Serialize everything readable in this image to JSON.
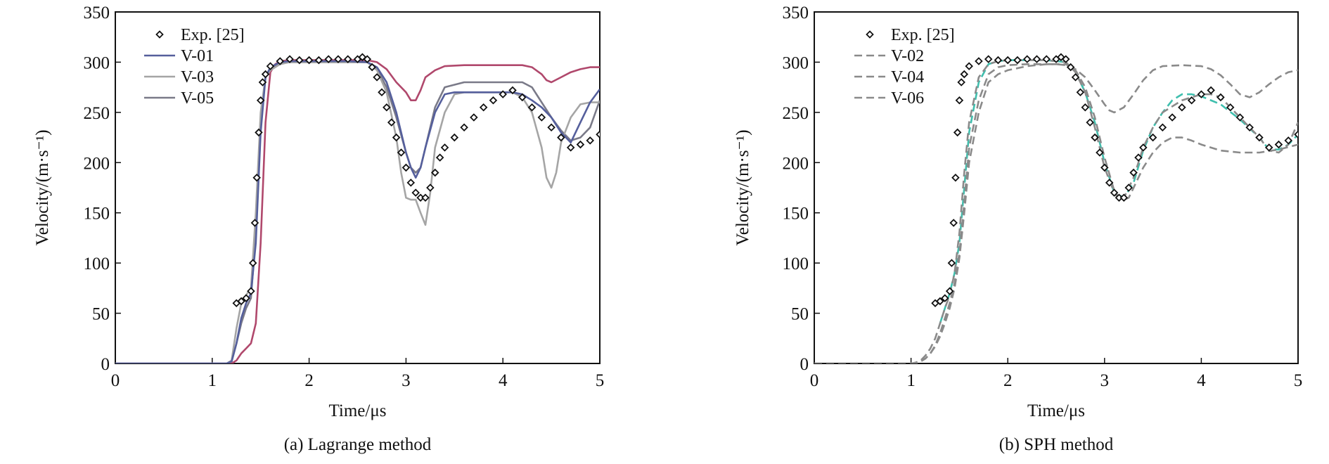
{
  "chart_data": [
    {
      "type": "line",
      "caption": "(a) Lagrange method",
      "xlabel": "Time/μs",
      "ylabel": "Velocity/(m·s⁻¹)",
      "xlim": [
        0,
        5
      ],
      "ylim": [
        0,
        350
      ],
      "xticks": [
        "0",
        "1",
        "2",
        "3",
        "4",
        "5"
      ],
      "yticks": [
        "0",
        "50",
        "100",
        "150",
        "200",
        "250",
        "300",
        "350"
      ],
      "legend_position": "top-left",
      "grid": false,
      "series": [
        {
          "name": "Exp. [25]",
          "style": "marker",
          "color": "#111111",
          "x": [
            1.25,
            1.3,
            1.35,
            1.4,
            1.42,
            1.44,
            1.46,
            1.48,
            1.5,
            1.52,
            1.55,
            1.6,
            1.7,
            1.8,
            1.9,
            2.0,
            2.1,
            2.2,
            2.3,
            2.4,
            2.5,
            2.55,
            2.6,
            2.65,
            2.7,
            2.75,
            2.8,
            2.85,
            2.9,
            2.95,
            3.0,
            3.05,
            3.1,
            3.15,
            3.2,
            3.25,
            3.3,
            3.35,
            3.4,
            3.5,
            3.6,
            3.7,
            3.8,
            3.9,
            4.0,
            4.1,
            4.2,
            4.3,
            4.4,
            4.5,
            4.6,
            4.7,
            4.8,
            4.9,
            5.0
          ],
          "y": [
            60,
            62,
            65,
            72,
            100,
            140,
            185,
            230,
            262,
            280,
            288,
            296,
            301,
            303,
            302,
            302,
            302,
            303,
            303,
            303,
            303,
            305,
            303,
            295,
            285,
            270,
            255,
            240,
            225,
            210,
            195,
            180,
            170,
            165,
            165,
            175,
            190,
            205,
            215,
            225,
            235,
            245,
            255,
            262,
            268,
            272,
            265,
            255,
            245,
            235,
            225,
            215,
            218,
            222,
            228
          ]
        },
        {
          "name": "V-01",
          "style": "solid",
          "color": "#555f9c",
          "x": [
            0,
            1.15,
            1.2,
            1.25,
            1.3,
            1.35,
            1.4,
            1.45,
            1.5,
            1.55,
            1.6,
            1.7,
            1.8,
            2.0,
            2.2,
            2.4,
            2.6,
            2.7,
            2.8,
            2.9,
            3.0,
            3.05,
            3.1,
            3.15,
            3.2,
            3.3,
            3.4,
            3.5,
            3.6,
            3.8,
            4.0,
            4.1,
            4.2,
            4.3,
            4.4,
            4.5,
            4.6,
            4.7,
            4.8,
            4.9,
            5.0
          ],
          "y": [
            0,
            0,
            2,
            20,
            45,
            60,
            70,
            120,
            230,
            285,
            295,
            300,
            301,
            301,
            301,
            301,
            300,
            295,
            280,
            250,
            210,
            195,
            185,
            195,
            215,
            250,
            268,
            270,
            270,
            270,
            270,
            270,
            268,
            262,
            255,
            245,
            230,
            220,
            240,
            260,
            273
          ]
        },
        {
          "name": "V-03",
          "style": "solid",
          "color": "#a5a5a5",
          "x": [
            0,
            1.15,
            1.2,
            1.25,
            1.3,
            1.35,
            1.4,
            1.45,
            1.5,
            1.55,
            1.6,
            1.7,
            1.8,
            2.0,
            2.2,
            2.4,
            2.6,
            2.7,
            2.8,
            2.9,
            2.95,
            3.0,
            3.05,
            3.1,
            3.15,
            3.2,
            3.25,
            3.3,
            3.4,
            3.5,
            3.6,
            3.8,
            4.0,
            4.1,
            4.2,
            4.3,
            4.4,
            4.45,
            4.5,
            4.55,
            4.6,
            4.7,
            4.8,
            4.9,
            5.0
          ],
          "y": [
            0,
            0,
            3,
            35,
            60,
            68,
            75,
            150,
            250,
            285,
            292,
            298,
            300,
            300,
            300,
            300,
            300,
            292,
            270,
            225,
            190,
            165,
            163,
            163,
            150,
            138,
            170,
            215,
            250,
            268,
            270,
            270,
            270,
            270,
            265,
            250,
            215,
            185,
            175,
            190,
            220,
            245,
            258,
            260,
            260
          ]
        },
        {
          "name": "V-05",
          "style": "solid",
          "color": "#7a7a88",
          "x": [
            0,
            1.15,
            1.2,
            1.25,
            1.3,
            1.35,
            1.4,
            1.45,
            1.5,
            1.55,
            1.6,
            1.7,
            1.8,
            2.0,
            2.2,
            2.4,
            2.6,
            2.7,
            2.8,
            2.9,
            3.0,
            3.05,
            3.1,
            3.15,
            3.2,
            3.3,
            3.4,
            3.6,
            3.8,
            4.0,
            4.2,
            4.3,
            4.4,
            4.5,
            4.6,
            4.7,
            4.8,
            4.9,
            5.0
          ],
          "y": [
            0,
            0,
            2,
            20,
            40,
            55,
            65,
            130,
            240,
            285,
            294,
            299,
            300,
            300,
            300,
            300,
            300,
            293,
            275,
            245,
            210,
            195,
            190,
            195,
            215,
            255,
            275,
            280,
            280,
            280,
            280,
            275,
            260,
            245,
            232,
            222,
            225,
            235,
            262
          ]
        },
        {
          "name": "",
          "style": "solid",
          "color": "#b0486c",
          "x": [
            0,
            1.2,
            1.25,
            1.3,
            1.35,
            1.4,
            1.45,
            1.5,
            1.55,
            1.6,
            1.65,
            1.7,
            1.8,
            2.0,
            2.2,
            2.4,
            2.6,
            2.7,
            2.8,
            2.9,
            3.0,
            3.05,
            3.1,
            3.15,
            3.2,
            3.3,
            3.4,
            3.6,
            3.8,
            4.0,
            4.2,
            4.3,
            4.4,
            4.45,
            4.5,
            4.6,
            4.7,
            4.8,
            4.9,
            5.0
          ],
          "y": [
            0,
            0,
            3,
            10,
            15,
            20,
            40,
            120,
            240,
            290,
            298,
            301,
            302,
            302,
            302,
            302,
            302,
            300,
            293,
            280,
            270,
            262,
            262,
            272,
            285,
            292,
            296,
            297,
            297,
            297,
            297,
            295,
            288,
            282,
            280,
            285,
            290,
            293,
            295,
            295
          ]
        }
      ]
    },
    {
      "type": "line",
      "caption": "(b) SPH method",
      "xlabel": "Time/μs",
      "ylabel": "Velocity/(m·s⁻¹)",
      "xlim": [
        0,
        5
      ],
      "ylim": [
        0,
        350
      ],
      "xticks": [
        "0",
        "1",
        "2",
        "3",
        "4",
        "5"
      ],
      "yticks": [
        "0",
        "50",
        "100",
        "150",
        "200",
        "250",
        "300",
        "350"
      ],
      "legend_position": "top-left",
      "grid": false,
      "series": [
        {
          "name": "Exp. [25]",
          "style": "marker",
          "color": "#111111",
          "x": [
            1.25,
            1.3,
            1.35,
            1.4,
            1.42,
            1.44,
            1.46,
            1.48,
            1.5,
            1.52,
            1.55,
            1.6,
            1.7,
            1.8,
            1.9,
            2.0,
            2.1,
            2.2,
            2.3,
            2.4,
            2.5,
            2.55,
            2.6,
            2.65,
            2.7,
            2.75,
            2.8,
            2.85,
            2.9,
            2.95,
            3.0,
            3.05,
            3.1,
            3.15,
            3.2,
            3.25,
            3.3,
            3.35,
            3.4,
            3.5,
            3.6,
            3.7,
            3.8,
            3.9,
            4.0,
            4.1,
            4.2,
            4.3,
            4.4,
            4.5,
            4.6,
            4.7,
            4.8,
            4.9,
            5.0
          ],
          "y": [
            60,
            62,
            65,
            72,
            100,
            140,
            185,
            230,
            262,
            280,
            288,
            296,
            301,
            303,
            302,
            302,
            302,
            303,
            303,
            303,
            303,
            305,
            303,
            295,
            285,
            270,
            255,
            240,
            225,
            210,
            195,
            180,
            170,
            165,
            165,
            175,
            190,
            205,
            215,
            225,
            235,
            245,
            255,
            262,
            268,
            272,
            265,
            255,
            245,
            235,
            225,
            215,
            218,
            222,
            228
          ]
        },
        {
          "name": "V-02",
          "style": "dashed",
          "color": "#8a8a8a",
          "x": [
            0,
            1.0,
            1.05,
            1.1,
            1.15,
            1.2,
            1.25,
            1.3,
            1.35,
            1.4,
            1.45,
            1.5,
            1.55,
            1.6,
            1.7,
            1.8,
            1.9,
            2.0,
            2.2,
            2.4,
            2.6,
            2.7,
            2.8,
            2.9,
            3.0,
            3.1,
            3.15,
            3.2,
            3.3,
            3.4,
            3.5,
            3.6,
            3.8,
            4.0,
            4.1,
            4.2,
            4.3,
            4.4,
            4.5,
            4.6,
            4.7,
            4.8,
            4.9,
            5.0
          ],
          "y": [
            0,
            0,
            1,
            3,
            8,
            15,
            25,
            40,
            55,
            68,
            90,
            130,
            190,
            240,
            285,
            298,
            301,
            302,
            302,
            302,
            300,
            290,
            270,
            235,
            195,
            170,
            163,
            165,
            185,
            215,
            235,
            250,
            262,
            268,
            268,
            265,
            255,
            245,
            235,
            225,
            212,
            210,
            218,
            240
          ]
        },
        {
          "name": "V-04",
          "style": "dashed",
          "color": "#8a8a8a",
          "x": [
            0,
            1.05,
            1.1,
            1.15,
            1.2,
            1.25,
            1.3,
            1.35,
            1.4,
            1.45,
            1.5,
            1.55,
            1.6,
            1.7,
            1.8,
            1.9,
            2.0,
            2.2,
            2.4,
            2.5,
            2.6,
            2.7,
            2.8,
            2.9,
            3.0,
            3.05,
            3.1,
            3.2,
            3.3,
            3.4,
            3.5,
            3.6,
            3.8,
            4.0,
            4.1,
            4.2,
            4.3,
            4.4,
            4.5,
            4.6,
            4.7,
            4.8,
            4.9,
            5.0
          ],
          "y": [
            0,
            0,
            2,
            5,
            10,
            18,
            30,
            45,
            60,
            80,
            110,
            160,
            215,
            262,
            288,
            295,
            297,
            298,
            298,
            298,
            297,
            293,
            285,
            272,
            258,
            252,
            250,
            255,
            268,
            282,
            292,
            296,
            297,
            296,
            293,
            287,
            278,
            268,
            265,
            270,
            278,
            285,
            290,
            292
          ]
        },
        {
          "name": "V-06",
          "style": "dashed",
          "color": "#8a8a8a",
          "x": [
            0,
            1.05,
            1.1,
            1.15,
            1.2,
            1.25,
            1.3,
            1.35,
            1.4,
            1.45,
            1.5,
            1.55,
            1.6,
            1.7,
            1.8,
            1.9,
            2.0,
            2.2,
            2.4,
            2.6,
            2.7,
            2.8,
            2.9,
            3.0,
            3.1,
            3.15,
            3.2,
            3.25,
            3.3,
            3.4,
            3.5,
            3.6,
            3.7,
            3.8,
            3.9,
            4.0,
            4.2,
            4.4,
            4.6,
            4.8,
            5.0
          ],
          "y": [
            0,
            0,
            2,
            5,
            10,
            17,
            27,
            40,
            55,
            75,
            105,
            150,
            200,
            250,
            280,
            288,
            292,
            296,
            298,
            298,
            292,
            275,
            245,
            205,
            172,
            165,
            163,
            165,
            175,
            195,
            210,
            220,
            225,
            225,
            222,
            218,
            212,
            210,
            210,
            213,
            218
          ]
        },
        {
          "name": "",
          "style": "dashed",
          "color": "#3fbfae",
          "x": [
            1.3,
            1.35,
            1.4,
            1.45,
            1.5,
            1.55,
            1.6,
            1.7,
            1.8,
            1.9,
            2.0,
            2.2,
            2.4,
            2.6,
            2.7,
            2.8,
            2.9,
            3.0,
            3.1,
            3.2,
            3.3,
            3.4,
            3.5,
            3.6,
            3.7,
            3.8,
            3.9,
            4.0,
            4.2,
            4.4,
            4.6,
            4.7,
            4.8,
            4.9,
            5.0
          ],
          "y": [
            40,
            55,
            70,
            90,
            120,
            175,
            230,
            280,
            298,
            301,
            302,
            302,
            302,
            300,
            290,
            270,
            240,
            200,
            170,
            165,
            180,
            212,
            235,
            250,
            262,
            268,
            268,
            266,
            258,
            243,
            225,
            213,
            213,
            218,
            228
          ]
        }
      ]
    }
  ]
}
